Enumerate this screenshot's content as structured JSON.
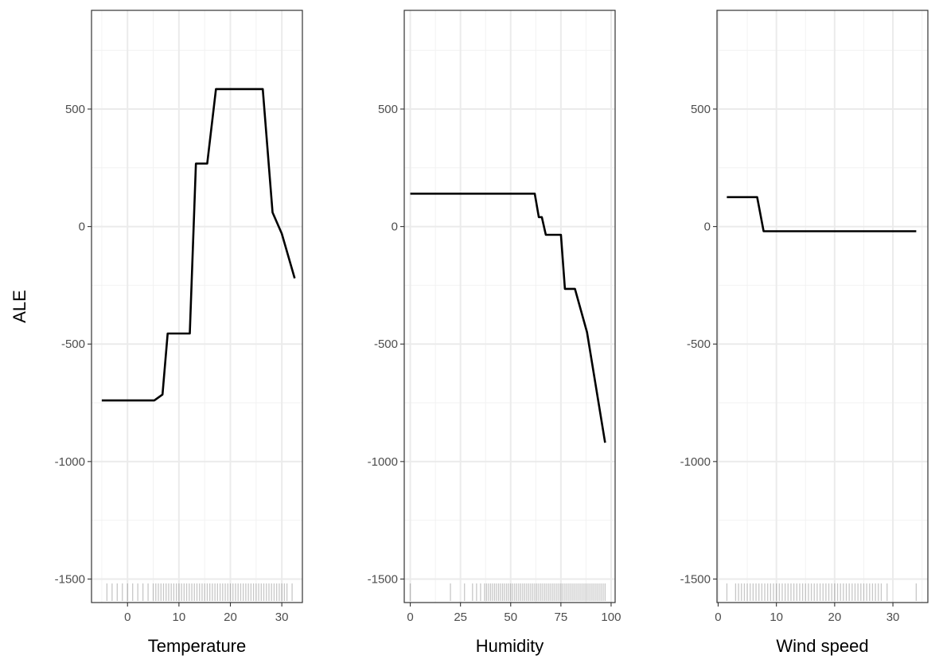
{
  "chart_data": {
    "type": "line",
    "ylabel": "ALE",
    "ylim": [
      -1600,
      920
    ],
    "y_ticks": [
      500,
      0,
      -500,
      -1000,
      -1500
    ],
    "grid": true,
    "rug": true,
    "panels": [
      {
        "xlabel": "Temperature",
        "xlim": [
          -7,
          34
        ],
        "x_ticks": [
          0,
          10,
          20,
          30
        ],
        "series": [
          {
            "x": [
              -5,
              -3,
              0,
              3,
              5.2,
              6.8,
              7.8,
              10,
              12.1,
              13.3,
              15.5,
              17.2,
              20,
              24,
              26.3,
              28.2,
              30,
              32.5
            ],
            "y": [
              -740,
              -740,
              -740,
              -740,
              -740,
              -715,
              -455,
              -455,
              -455,
              268,
              268,
              585,
              585,
              585,
              585,
              60,
              -30,
              -220
            ]
          }
        ],
        "rug_x": [
          -4,
          -3,
          -2,
          -1,
          0,
          1,
          2,
          3,
          4,
          5,
          5.5,
          6,
          6.5,
          7,
          7.5,
          8,
          8.5,
          9,
          9.5,
          10,
          10.5,
          11,
          11.5,
          12,
          12.5,
          13,
          13.5,
          14,
          14.5,
          15,
          15.5,
          16,
          16.5,
          17,
          17.5,
          18,
          18.5,
          19,
          19.5,
          20,
          20.5,
          21,
          21.5,
          22,
          22.5,
          23,
          23.5,
          24,
          24.5,
          25,
          25.5,
          26,
          26.5,
          27,
          27.5,
          28,
          28.5,
          29,
          29.5,
          30,
          30.5,
          31,
          32
        ]
      },
      {
        "xlabel": "Humidity",
        "xlim": [
          -3,
          102
        ],
        "x_ticks": [
          0,
          25,
          50,
          75,
          100
        ],
        "series": [
          {
            "x": [
              0,
              20,
              40,
              62,
              64,
              65.5,
              67.5,
              72,
              75,
              77,
              80,
              82,
              88,
              97
            ],
            "y": [
              140,
              140,
              140,
              140,
              40,
              40,
              -35,
              -35,
              -35,
              -265,
              -265,
              -265,
              -450,
              -920
            ]
          }
        ],
        "rug_x": [
          0,
          20,
          27,
          31,
          33,
          35,
          37,
          38,
          39,
          40,
          41,
          42,
          43,
          44,
          45,
          46,
          47,
          48,
          49,
          50,
          51,
          52,
          53,
          54,
          55,
          56,
          57,
          58,
          59,
          60,
          61,
          62,
          63,
          64,
          65,
          66,
          67,
          68,
          69,
          70,
          71,
          72,
          73,
          74,
          75,
          76,
          77,
          78,
          79,
          80,
          81,
          82,
          83,
          84,
          85,
          86,
          87,
          88,
          89,
          90,
          91,
          92,
          93,
          94,
          95,
          96,
          97
        ]
      },
      {
        "xlabel": "Wind speed",
        "xlim": [
          -0.2,
          36
        ],
        "x_ticks": [
          0,
          10,
          20,
          30
        ],
        "series": [
          {
            "x": [
              1.5,
              4,
              6.7,
              7.8,
              12,
              20,
              28,
              34
            ],
            "y": [
              125,
              125,
              125,
              -20,
              -20,
              -20,
              -20,
              -20
            ]
          }
        ],
        "rug_x": [
          1.5,
          3,
          3.5,
          4,
          4.5,
          5,
          5.5,
          6,
          6.5,
          7,
          7.5,
          8,
          8.5,
          9,
          9.5,
          10,
          10.5,
          11,
          11.5,
          12,
          12.5,
          13,
          13.5,
          14,
          14.5,
          15,
          15.5,
          16,
          16.5,
          17,
          17.5,
          18,
          18.5,
          19,
          19.5,
          20,
          20.5,
          21,
          21.5,
          22,
          22.5,
          23,
          23.5,
          24,
          24.5,
          25,
          25.5,
          26,
          26.5,
          27,
          27.5,
          28,
          29,
          34
        ]
      }
    ]
  }
}
